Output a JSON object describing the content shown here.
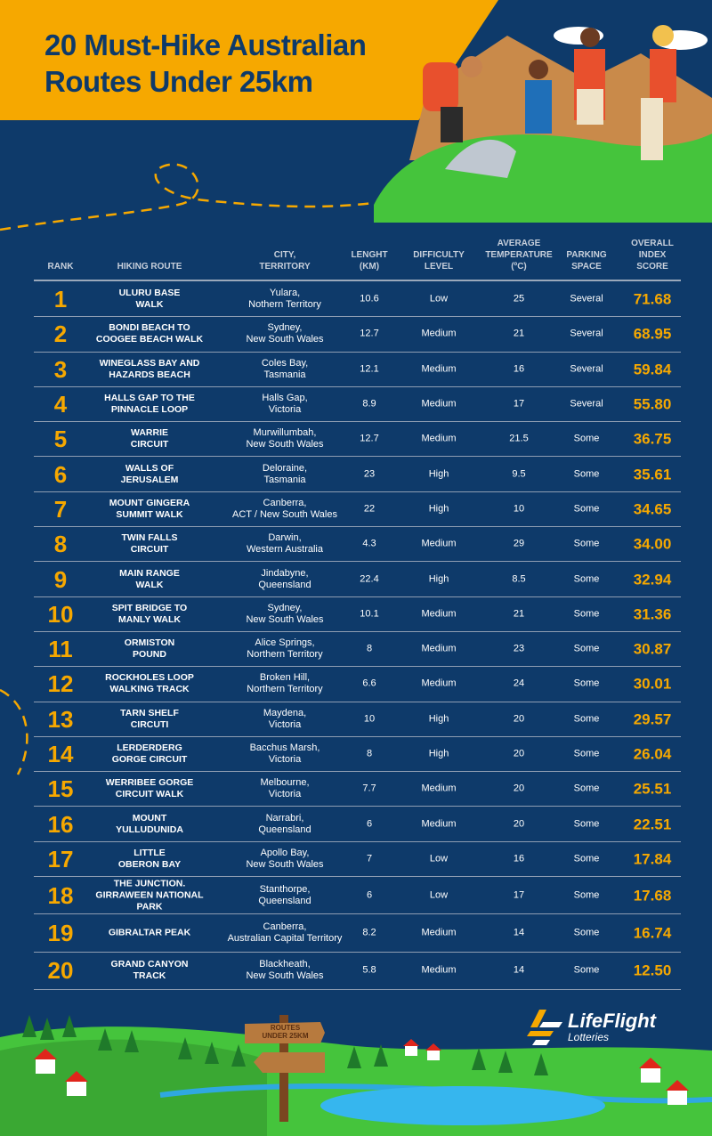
{
  "title": "20 Must-Hike Australian\nRoutes Under 25km",
  "colors": {
    "background": "#0e3a6a",
    "accent": "#f6a800",
    "header_text": "#c7cfdb"
  },
  "table": {
    "headers": {
      "rank": "RANK",
      "route": "HIKING ROUTE",
      "city": "CITY,\nTERRITORY",
      "length": "LENGHT\n(KM)",
      "difficulty": "DIFFICULTY\nLEVEL",
      "temperature": "AVERAGE\nTEMPERATURE\n(ºC)",
      "parking": "PARKING\nSPACE",
      "score": "OVERALL\nINDEX\nSCORE"
    },
    "rows": [
      {
        "rank": "1",
        "route": "ULURU BASE\nWALK",
        "city": "Yulara,\nNothern Territory",
        "length": "10.6",
        "difficulty": "Low",
        "temperature": "25",
        "parking": "Several",
        "score": "71.68"
      },
      {
        "rank": "2",
        "route": "BONDI BEACH TO\nCOOGEE BEACH WALK",
        "city": "Sydney,\nNew South Wales",
        "length": "12.7",
        "difficulty": "Medium",
        "temperature": "21",
        "parking": "Several",
        "score": "68.95"
      },
      {
        "rank": "3",
        "route": "WINEGLASS BAY AND\nHAZARDS BEACH",
        "city": "Coles Bay,\nTasmania",
        "length": "12.1",
        "difficulty": "Medium",
        "temperature": "16",
        "parking": "Several",
        "score": "59.84"
      },
      {
        "rank": "4",
        "route": "HALLS GAP TO THE\nPINNACLE LOOP",
        "city": "Halls Gap,\nVictoria",
        "length": "8.9",
        "difficulty": "Medium",
        "temperature": "17",
        "parking": "Several",
        "score": "55.80"
      },
      {
        "rank": "5",
        "route": "WARRIE\nCIRCUIT",
        "city": "Murwillumbah,\nNew South Wales",
        "length": "12.7",
        "difficulty": "Medium",
        "temperature": "21.5",
        "parking": "Some",
        "score": "36.75"
      },
      {
        "rank": "6",
        "route": "WALLS OF\nJERUSALEM",
        "city": "Deloraine,\nTasmania",
        "length": "23",
        "difficulty": "High",
        "temperature": "9.5",
        "parking": "Some",
        "score": "35.61"
      },
      {
        "rank": "7",
        "route": "MOUNT GINGERA\nSUMMIT WALK",
        "city": "Canberra,\nACT / New South Wales",
        "length": "22",
        "difficulty": "High",
        "temperature": "10",
        "parking": "Some",
        "score": "34.65"
      },
      {
        "rank": "8",
        "route": "TWIN FALLS\nCIRCUIT",
        "city": "Darwin,\nWestern Australia",
        "length": "4.3",
        "difficulty": "Medium",
        "temperature": "29",
        "parking": "Some",
        "score": "34.00"
      },
      {
        "rank": "9",
        "route": "MAIN RANGE\nWALK",
        "city": "Jindabyne,\nQueensland",
        "length": "22.4",
        "difficulty": "High",
        "temperature": "8.5",
        "parking": "Some",
        "score": "32.94"
      },
      {
        "rank": "10",
        "route": "SPIT BRIDGE TO\nMANLY WALK",
        "city": "Sydney,\nNew South Wales",
        "length": "10.1",
        "difficulty": "Medium",
        "temperature": "21",
        "parking": "Some",
        "score": "31.36"
      },
      {
        "rank": "11",
        "route": "ORMISTON\nPOUND",
        "city": "Alice Springs,\nNorthern Territory",
        "length": "8",
        "difficulty": "Medium",
        "temperature": "23",
        "parking": "Some",
        "score": "30.87"
      },
      {
        "rank": "12",
        "route": "ROCKHOLES LOOP\nWALKING TRACK",
        "city": "Broken Hill,\nNorthern Territory",
        "length": "6.6",
        "difficulty": "Medium",
        "temperature": "24",
        "parking": "Some",
        "score": "30.01"
      },
      {
        "rank": "13",
        "route": "TARN SHELF\nCIRCUTI",
        "city": "Maydena,\nVictoria",
        "length": "10",
        "difficulty": "High",
        "temperature": "20",
        "parking": "Some",
        "score": "29.57"
      },
      {
        "rank": "14",
        "route": "LERDERDERG\nGORGE CIRCUIT",
        "city": "Bacchus Marsh,\nVictoria",
        "length": "8",
        "difficulty": "High",
        "temperature": "20",
        "parking": "Some",
        "score": "26.04"
      },
      {
        "rank": "15",
        "route": "WERRIBEE GORGE\nCIRCUIT WALK",
        "city": "Melbourne,\nVictoria",
        "length": "7.7",
        "difficulty": "Medium",
        "temperature": "20",
        "parking": "Some",
        "score": "25.51"
      },
      {
        "rank": "16",
        "route": "MOUNT\nYULLUDUNIDA",
        "city": "Narrabri,\nQueensland",
        "length": "6",
        "difficulty": "Medium",
        "temperature": "20",
        "parking": "Some",
        "score": "22.51"
      },
      {
        "rank": "17",
        "route": "LITTLE\nOBERON BAY",
        "city": "Apollo Bay,\nNew South Wales",
        "length": "7",
        "difficulty": "Low",
        "temperature": "16",
        "parking": "Some",
        "score": "17.84"
      },
      {
        "rank": "18",
        "route": "THE JUNCTION.\nGIRRAWEEN NATIONAL\nPARK",
        "city": "Stanthorpe,\nQueensland",
        "length": "6",
        "difficulty": "Low",
        "temperature": "17",
        "parking": "Some",
        "score": "17.68"
      },
      {
        "rank": "19",
        "route": "GIBRALTAR PEAK",
        "city": "Canberra,\nAustralian Capital Territory",
        "length": "8.2",
        "difficulty": "Medium",
        "temperature": "14",
        "parking": "Some",
        "score": "16.74"
      },
      {
        "rank": "20",
        "route": "GRAND CANYON\nTRACK",
        "city": "Blackheath,\nNew South Wales",
        "length": "5.8",
        "difficulty": "Medium",
        "temperature": "14",
        "parking": "Some",
        "score": "12.50"
      }
    ]
  },
  "signpost": {
    "top": "ROUTES",
    "bottom": "UNDER 25KM"
  },
  "logo": {
    "name": "LifeFlight",
    "sub": "Lotteries"
  }
}
